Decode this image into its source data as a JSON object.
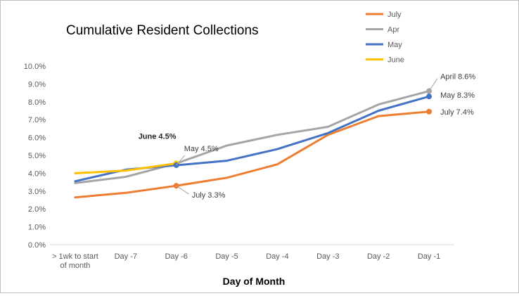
{
  "chart_data": {
    "type": "line",
    "title": "Cumulative Resident Collections",
    "xlabel": "Day of Month",
    "ylabel": "",
    "ylim": [
      0,
      10
    ],
    "y_tick_values": [
      0,
      1,
      2,
      3,
      4,
      5,
      6,
      7,
      8,
      9,
      10
    ],
    "y_tick_labels": [
      "0.0%",
      "1.0%",
      "2.0%",
      "3.0%",
      "4.0%",
      "5.0%",
      "6.0%",
      "7.0%",
      "8.0%",
      "9.0%",
      "10.0%"
    ],
    "categories": [
      [
        "> 1wk to start",
        "of month"
      ],
      [
        "Day -7"
      ],
      [
        "Day -6"
      ],
      [
        "Day -5"
      ],
      [
        "Day -4"
      ],
      [
        "Day -3"
      ],
      [
        "Day -2"
      ],
      [
        "Day -1"
      ]
    ],
    "grid": false,
    "legend_position": "top-right",
    "series": [
      {
        "name": "July",
        "color": "#ED7D31",
        "values": [
          2.65,
          2.9,
          3.3,
          3.75,
          4.5,
          6.15,
          7.2,
          7.45
        ]
      },
      {
        "name": "Apr",
        "color": "#A5A5A5",
        "values": [
          3.45,
          3.8,
          4.55,
          5.55,
          6.15,
          6.6,
          7.85,
          8.6
        ]
      },
      {
        "name": "May",
        "color": "#4472C4",
        "values": [
          3.55,
          4.2,
          4.45,
          4.7,
          5.35,
          6.25,
          7.5,
          8.3
        ]
      },
      {
        "name": "June",
        "color": "#FFC000",
        "values": [
          4.0,
          4.15,
          4.55,
          null,
          null,
          null,
          null,
          null
        ]
      }
    ],
    "annotations": [
      {
        "text": "June 4.5%",
        "series": 3,
        "index": 2,
        "bold": true
      },
      {
        "text": "May 4.5%",
        "series": 2,
        "index": 2,
        "bold": false
      },
      {
        "text": "July 3.3%",
        "series": 0,
        "index": 2,
        "bold": false
      },
      {
        "text": "April 8.6%",
        "series": 1,
        "index": 7,
        "bold": false
      },
      {
        "text": "May 8.3%",
        "series": 2,
        "index": 7,
        "bold": false
      },
      {
        "text": "July 7.4%",
        "series": 0,
        "index": 7,
        "bold": false
      }
    ]
  }
}
